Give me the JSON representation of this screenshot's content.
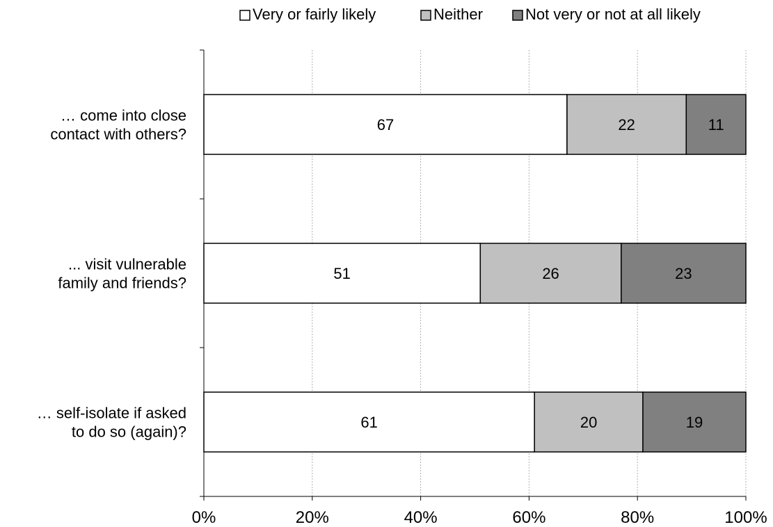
{
  "chart_data": {
    "type": "bar",
    "orientation": "horizontal",
    "stacked": true,
    "percent_scale": true,
    "title": "",
    "xlabel": "",
    "ylabel": "",
    "categories": [
      "… come into close contact with others?",
      "... visit vulnerable family and friends?",
      "… self-isolate if asked to do so (again)?"
    ],
    "category_label_lines": [
      [
        "… come into close",
        "contact with others?"
      ],
      [
        "... visit vulnerable",
        "family and friends?"
      ],
      [
        "… self-isolate if asked",
        "to do so (again)?"
      ]
    ],
    "series": [
      {
        "name": "Very or fairly likely",
        "color": "#ffffff",
        "values": [
          67,
          51,
          61
        ]
      },
      {
        "name": "Neither",
        "color": "#c0c0c0",
        "values": [
          22,
          26,
          20
        ]
      },
      {
        "name": "Not very or not at all likely",
        "color": "#808080",
        "values": [
          11,
          23,
          19
        ]
      }
    ],
    "xlim": [
      0,
      100
    ],
    "x_ticks": [
      0,
      20,
      40,
      60,
      80,
      100
    ],
    "x_tick_labels": [
      "0%",
      "20%",
      "40%",
      "60%",
      "80%",
      "100%"
    ],
    "grid": {
      "vertical": true,
      "style": "dotted",
      "color": "#b0b0b0"
    },
    "legend": {
      "position": "top-right"
    },
    "data_labels": true
  }
}
